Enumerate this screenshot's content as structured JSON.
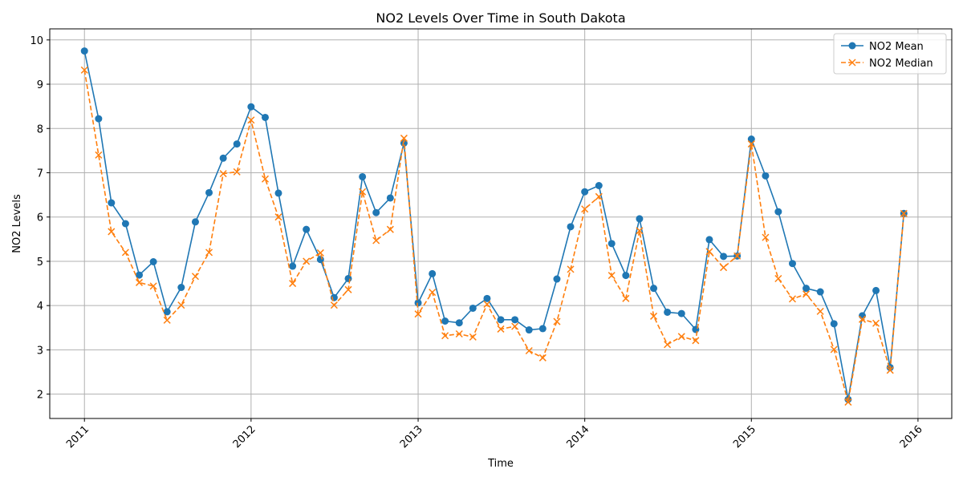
{
  "chart_data": {
    "type": "line",
    "title": "NO2 Levels Over Time in South Dakota",
    "xlabel": "Time",
    "ylabel": "NO2 Levels",
    "xlim": [
      "2010-10-17",
      "2016-03-15"
    ],
    "ylim": [
      1.45,
      10.25
    ],
    "x_ticks": [
      "2011",
      "2012",
      "2013",
      "2014",
      "2015",
      "2016"
    ],
    "y_ticks": [
      2,
      3,
      4,
      5,
      6,
      7,
      8,
      9,
      10
    ],
    "grid": true,
    "legend_position": "top-right",
    "x": [
      "2011-01",
      "2011-02",
      "2011-03",
      "2011-04",
      "2011-05",
      "2011-06",
      "2011-07",
      "2011-08",
      "2011-09",
      "2011-10",
      "2011-11",
      "2011-12",
      "2012-01",
      "2012-02",
      "2012-03",
      "2012-04",
      "2012-05",
      "2012-06",
      "2012-07",
      "2012-08",
      "2012-09",
      "2012-10",
      "2012-11",
      "2012-12",
      "2013-01",
      "2013-02",
      "2013-03",
      "2013-04",
      "2013-05",
      "2013-06",
      "2013-07",
      "2013-08",
      "2013-09",
      "2013-10",
      "2013-11",
      "2013-12",
      "2014-01",
      "2014-02",
      "2014-03",
      "2014-04",
      "2014-05",
      "2014-06",
      "2014-07",
      "2014-08",
      "2014-09",
      "2014-10",
      "2014-11",
      "2014-12",
      "2015-01",
      "2015-02",
      "2015-03",
      "2015-04",
      "2015-05",
      "2015-06",
      "2015-07",
      "2015-08",
      "2015-09",
      "2015-10",
      "2015-11",
      "2015-12"
    ],
    "series": [
      {
        "name": "NO2 Mean",
        "color": "#1f77b4",
        "marker": "circle",
        "linestyle": "solid",
        "values": [
          9.75,
          8.22,
          6.32,
          5.85,
          4.69,
          4.99,
          3.86,
          4.41,
          5.89,
          6.55,
          7.33,
          7.65,
          8.49,
          8.25,
          6.54,
          4.89,
          5.72,
          5.04,
          4.18,
          4.61,
          6.91,
          6.1,
          6.43,
          7.67,
          4.06,
          4.72,
          3.65,
          3.61,
          3.94,
          4.16,
          3.68,
          3.68,
          3.45,
          3.48,
          4.6,
          5.78,
          6.57,
          6.71,
          5.4,
          4.68,
          5.96,
          4.39,
          3.85,
          3.82,
          3.46,
          5.49,
          5.11,
          5.12,
          7.76,
          6.93,
          6.12,
          4.95,
          4.39,
          4.31,
          3.59,
          1.88,
          3.77,
          4.34,
          2.6,
          6.08
        ]
      },
      {
        "name": "NO2 Median",
        "color": "#ff7f0e",
        "marker": "x",
        "linestyle": "dashed",
        "values": [
          9.32,
          7.4,
          5.67,
          5.2,
          4.52,
          4.44,
          3.67,
          4.01,
          4.66,
          5.2,
          6.98,
          7.02,
          8.19,
          6.86,
          6.0,
          4.5,
          5.0,
          5.19,
          4.01,
          4.36,
          6.57,
          5.47,
          5.72,
          7.78,
          3.81,
          4.3,
          3.32,
          3.36,
          3.29,
          4.03,
          3.47,
          3.53,
          2.98,
          2.82,
          3.64,
          4.82,
          6.18,
          6.46,
          4.68,
          4.16,
          5.69,
          3.76,
          3.12,
          3.3,
          3.21,
          5.22,
          4.86,
          5.12,
          7.65,
          5.54,
          4.61,
          4.15,
          4.26,
          3.87,
          3.01,
          1.82,
          3.69,
          3.6,
          2.54,
          6.08
        ]
      }
    ]
  }
}
